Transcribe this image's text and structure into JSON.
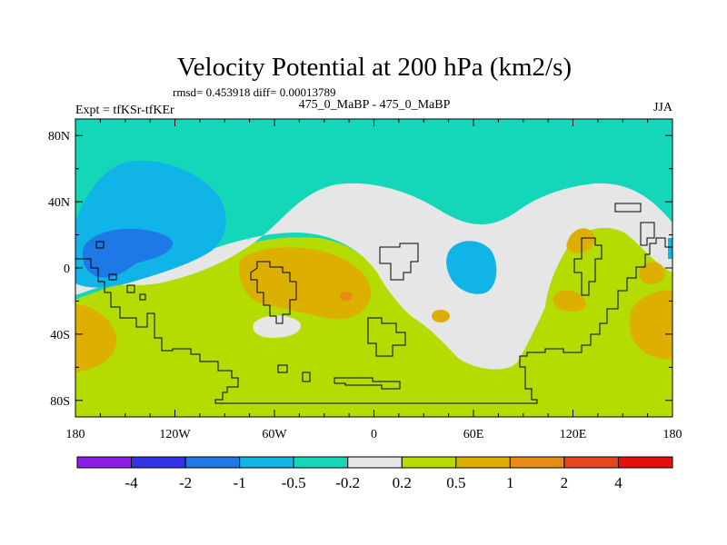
{
  "chart_data": {
    "type": "heatmap",
    "title": "Velocity Potential at 200 hPa (km2/s)",
    "subtitle_left": "rmsd= 0.453918 diff= 0.00013789",
    "left_label": "Expt = tfKSr-tfKEr",
    "center_label": "475_0_MaBP - 475_0_MaBP",
    "right_label": "JJA",
    "x_axis": {
      "range": [
        -180,
        180
      ],
      "ticks": [
        {
          "value": -180,
          "label": "180"
        },
        {
          "value": -120,
          "label": "120W"
        },
        {
          "value": -60,
          "label": "60W"
        },
        {
          "value": 0,
          "label": "0"
        },
        {
          "value": 60,
          "label": "60E"
        },
        {
          "value": 120,
          "label": "120E"
        },
        {
          "value": 180,
          "label": "180"
        }
      ]
    },
    "y_axis": {
      "range": [
        -90,
        90
      ],
      "ticks": [
        {
          "value": 80,
          "label": "80N"
        },
        {
          "value": 40,
          "label": "40N"
        },
        {
          "value": 0,
          "label": "0"
        },
        {
          "value": -40,
          "label": "40S"
        },
        {
          "value": -80,
          "label": "80S"
        }
      ]
    },
    "colorbar": {
      "colors": [
        "#8c1ee8",
        "#3232e6",
        "#1e78e6",
        "#10b4e6",
        "#14d7b9",
        "#e6e6e6",
        "#b4dc00",
        "#dcaf00",
        "#e68c14",
        "#e6461e",
        "#e60f0f"
      ],
      "labels": [
        "-4",
        "-2",
        "-1",
        "-0.5",
        "-0.2",
        "0.2",
        "0.5",
        "1",
        "2",
        "4"
      ]
    },
    "field_levels": [
      {
        "level": "-0.5..-0.2",
        "color": "#14d7b9",
        "region": "background north / tropics"
      },
      {
        "level": "-0.2..0.2",
        "color": "#e6e6e6",
        "region": "transition band"
      },
      {
        "level": "0.2..0.5",
        "color": "#b4dc00",
        "region": "southern hemisphere"
      },
      {
        "level": "0.5..1",
        "color": "#dcaf00",
        "region": "local maxima"
      },
      {
        "level": "1..2",
        "color": "#e68c14",
        "region": "South America max"
      },
      {
        "level": "-1..-0.5",
        "color": "#10b4e6",
        "region": "NE Pacific / Africa minima"
      },
      {
        "level": "-2..-1",
        "color": "#1e78e6",
        "region": "central Pacific min"
      }
    ]
  }
}
